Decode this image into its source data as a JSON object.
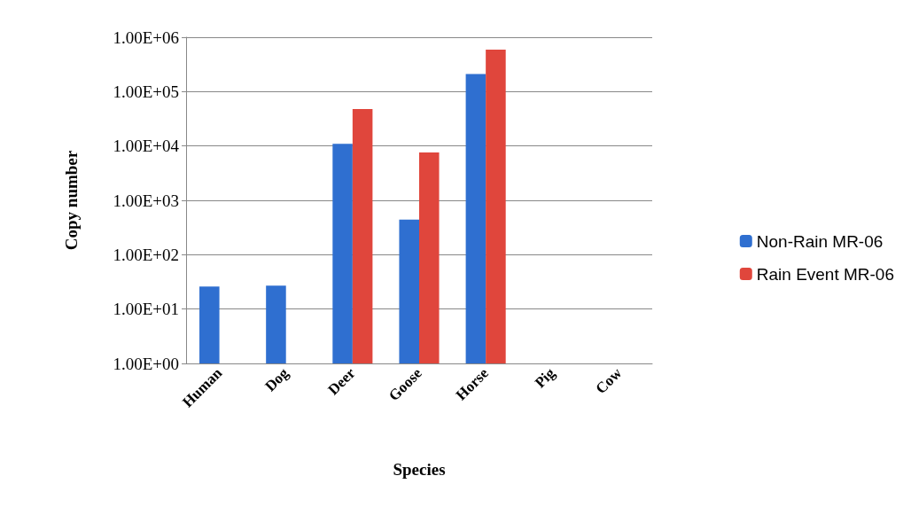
{
  "chart_data": {
    "type": "bar",
    "xlabel": "Species",
    "ylabel": "Copy number",
    "categories": [
      "Human",
      "Dog",
      "Deer",
      "Goose",
      "Horse",
      "Pig",
      "Cow"
    ],
    "series": [
      {
        "name": "Non-Rain MR-06",
        "color": "#2f6fd0",
        "values": [
          26,
          27,
          11000,
          440,
          210000,
          null,
          null
        ]
      },
      {
        "name": "Rain Event MR-06",
        "color": "#e0463c",
        "values": [
          null,
          null,
          48000,
          7600,
          590000,
          null,
          null
        ]
      }
    ],
    "log": "y",
    "ylim": [
      1,
      1000000
    ],
    "yticks": [
      {
        "value": 1,
        "label": "1.00E+00"
      },
      {
        "value": 10,
        "label": "1.00E+01"
      },
      {
        "value": 100,
        "label": "1.00E+02"
      },
      {
        "value": 1000,
        "label": "1.00E+03"
      },
      {
        "value": 10000,
        "label": "1.00E+04"
      },
      {
        "value": 100000,
        "label": "1.00E+05"
      },
      {
        "value": 1000000,
        "label": "1.00E+06"
      }
    ],
    "grid": "y",
    "legend": "right"
  }
}
